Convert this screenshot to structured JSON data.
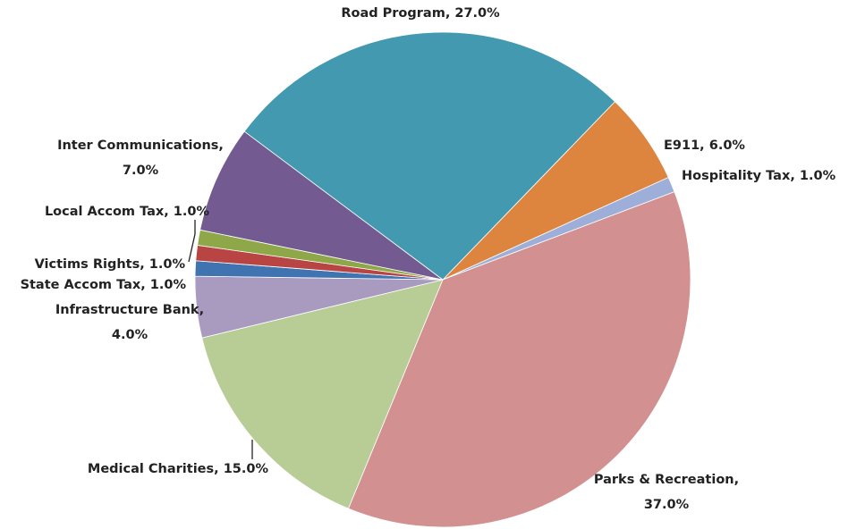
{
  "chart_data": {
    "type": "pie",
    "labels": [
      [
        "E911, 6.0%"
      ],
      [
        "Hospitality Tax, 1.0%"
      ],
      [
        "Parks & Recreation,",
        "37.0%"
      ],
      [
        "Medical Charities, 15.0%"
      ],
      [
        "Infrastructure Bank,",
        "4.0%"
      ],
      [
        "State Accom Tax, 1.0%"
      ],
      [
        "Victims Rights, 1.0%"
      ],
      [
        "Local Accom Tax, 1.0%"
      ],
      [
        "Inter Communications,",
        "7.0%"
      ],
      [
        "Road Program, 27.0%"
      ]
    ],
    "values": [
      6,
      1,
      37,
      15,
      4,
      1,
      1,
      1,
      7,
      27
    ],
    "colors": [
      "#dd843e",
      "#9daed8",
      "#d29190",
      "#b8cc96",
      "#a99ac0",
      "#3f74b0",
      "#b84543",
      "#8ea749",
      "#735a91",
      "#4299b0"
    ]
  }
}
